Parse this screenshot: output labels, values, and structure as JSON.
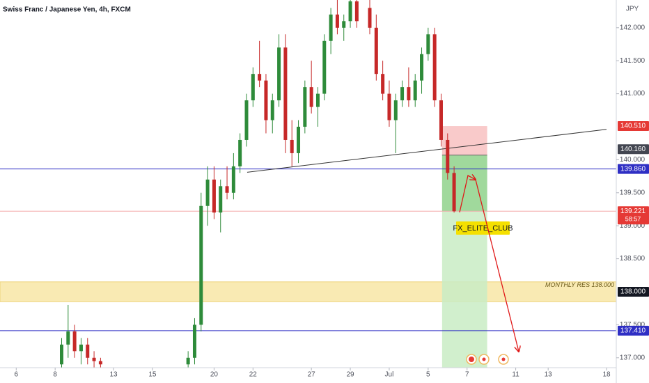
{
  "chart_data": {
    "type": "candlestick",
    "title": "Swiss Franc / Japanese Yen, 4h, FXCM",
    "currency": "JPY",
    "xlim": [
      0,
      190
    ],
    "ylim": [
      136.85,
      142.42
    ],
    "xticks": [
      {
        "value": 5,
        "label": "6"
      },
      {
        "value": 17,
        "label": "8"
      },
      {
        "value": 35,
        "label": "13"
      },
      {
        "value": 47,
        "label": "15"
      },
      {
        "value": 66,
        "label": "20"
      },
      {
        "value": 78,
        "label": "22"
      },
      {
        "value": 96,
        "label": "27"
      },
      {
        "value": 108,
        "label": "29"
      },
      {
        "value": 120,
        "label": "Jul"
      },
      {
        "value": 132,
        "label": "5"
      },
      {
        "value": 144,
        "label": "7"
      },
      {
        "value": 159,
        "label": "11"
      },
      {
        "value": 169,
        "label": "13"
      },
      {
        "value": 187,
        "label": "18"
      }
    ],
    "yticks": [
      {
        "value": 137,
        "label": "137.000"
      },
      {
        "value": 137.5,
        "label": "137.500"
      },
      {
        "value": 138.5,
        "label": "138.500"
      },
      {
        "value": 139,
        "label": "139.000"
      },
      {
        "value": 139.5,
        "label": "139.500"
      },
      {
        "value": 140,
        "label": "140.000"
      },
      {
        "value": 141,
        "label": "141.000"
      },
      {
        "value": 141.5,
        "label": "141.500"
      },
      {
        "value": 142,
        "label": "142.000"
      }
    ],
    "up_color": "#2e8b3a",
    "down_color": "#c62828",
    "candles": {
      "x": [
        19,
        21,
        23,
        25,
        27,
        29,
        31,
        58,
        60,
        62,
        64,
        66,
        68,
        70,
        72,
        74,
        76,
        78,
        80,
        82,
        84,
        86,
        88,
        90,
        92,
        94,
        96,
        98,
        100,
        102,
        104,
        106,
        108,
        110,
        114,
        116,
        118,
        120,
        122,
        124,
        126,
        128,
        130,
        132,
        134,
        136,
        138,
        140
      ],
      "open": [
        136.9,
        137.2,
        137.4,
        137.1,
        137.2,
        137.0,
        136.95,
        136.9,
        137.0,
        137.5,
        139.3,
        139.7,
        139.2,
        139.6,
        139.5,
        139.9,
        140.3,
        140.9,
        141.3,
        141.2,
        140.6,
        140.9,
        141.7,
        140.3,
        140.1,
        140.5,
        141.1,
        140.8,
        141.0,
        141.8,
        142.2,
        142.0,
        142.1,
        142.4,
        142.3,
        142.0,
        141.3,
        141.0,
        140.6,
        140.9,
        141.1,
        140.9,
        141.2,
        141.6,
        141.9,
        140.9,
        140.3,
        139.8
      ],
      "high": [
        137.3,
        137.8,
        137.5,
        137.3,
        137.3,
        137.1,
        137.0,
        137.1,
        137.6,
        139.5,
        139.9,
        139.9,
        139.7,
        139.9,
        140.1,
        140.4,
        141.0,
        141.4,
        141.8,
        141.3,
        141.0,
        141.9,
        141.9,
        140.6,
        140.6,
        141.2,
        141.5,
        141.1,
        141.9,
        142.3,
        142.42,
        142.2,
        142.42,
        142.42,
        142.42,
        142.2,
        141.5,
        141.2,
        141.0,
        141.2,
        141.4,
        141.3,
        141.7,
        142.0,
        142.0,
        141.0,
        140.4,
        139.9
      ],
      "low": [
        136.85,
        137.0,
        137.0,
        136.9,
        136.9,
        136.85,
        136.85,
        136.85,
        136.9,
        137.4,
        139.0,
        139.1,
        138.9,
        139.4,
        139.4,
        139.8,
        140.2,
        140.8,
        141.1,
        140.4,
        140.4,
        140.8,
        140.1,
        139.9,
        139.95,
        140.4,
        140.7,
        140.5,
        140.9,
        141.6,
        141.9,
        141.8,
        142.0,
        142.0,
        141.9,
        141.2,
        140.9,
        140.5,
        140.1,
        140.8,
        140.8,
        140.8,
        141.0,
        141.5,
        140.8,
        140.2,
        139.7,
        139.2
      ],
      "close": [
        137.2,
        137.4,
        137.1,
        137.2,
        137.0,
        136.95,
        136.9,
        137.0,
        137.5,
        139.3,
        139.7,
        139.2,
        139.6,
        139.5,
        139.9,
        140.3,
        140.9,
        141.3,
        141.2,
        140.6,
        140.9,
        141.7,
        140.3,
        140.1,
        140.5,
        141.1,
        140.8,
        141.0,
        141.8,
        142.2,
        142.0,
        142.1,
        142.4,
        142.1,
        142.0,
        141.3,
        141.0,
        140.6,
        140.9,
        141.1,
        140.9,
        141.2,
        141.6,
        141.9,
        140.9,
        140.3,
        139.8,
        139.22
      ]
    },
    "levels": [
      {
        "value": 140.51,
        "label": "140.510",
        "color": "#e53935",
        "line": false
      },
      {
        "value": 140.16,
        "label": "140.160",
        "color": "#434651",
        "line": false
      },
      {
        "value": 139.86,
        "label": "139.860",
        "color": "#2f2fc4",
        "line": true
      },
      {
        "value": 139.221,
        "label": "139.221",
        "color": "#e53935",
        "line": true,
        "countdown": "58:57"
      },
      {
        "value": 138.0,
        "label": "138.000",
        "color": "#131722",
        "line": false
      },
      {
        "value": 137.41,
        "label": "137.410",
        "color": "#2f2fc4",
        "line": true
      }
    ],
    "zone": {
      "low": 137.85,
      "high": 138.15,
      "label": "MONTHLY RES 138.000"
    },
    "trendline": {
      "x": [
        76.2,
        187
      ],
      "y": [
        139.81,
        140.46
      ]
    },
    "position": {
      "x": [
        136.3,
        150.2
      ],
      "stop": 140.51,
      "entry": 140.07
    },
    "annotation": "FX_ELITE_CLUB"
  }
}
